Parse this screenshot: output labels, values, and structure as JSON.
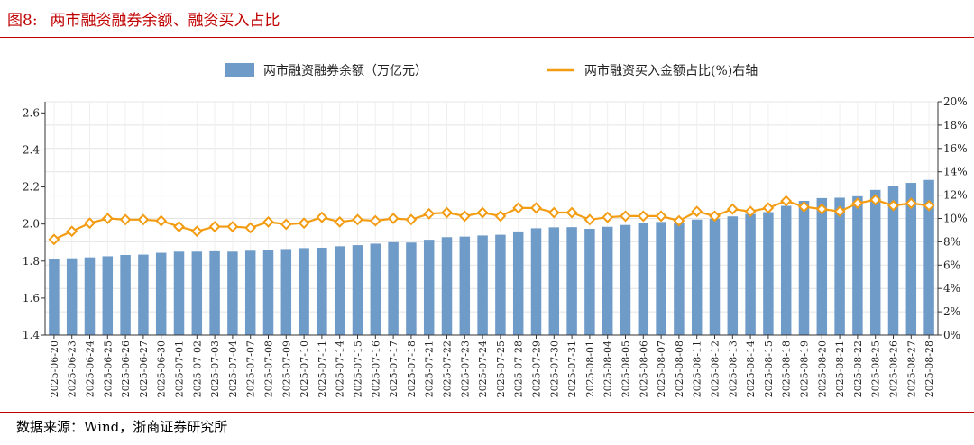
{
  "figure": {
    "number": "图8:",
    "title": "两市融资融券余额、融资买入占比",
    "source": "数据来源：Wind，浙商证券研究所"
  },
  "colors": {
    "bar": "#6f9bc8",
    "line": "#f39c12",
    "marker_fill": "#ffffff",
    "accent_red": "#c00000",
    "grid": "#e4e4e4"
  },
  "chart_data": {
    "type": "bar",
    "categories": [
      "2025-06-20",
      "2025-06-23",
      "2025-06-24",
      "2025-06-25",
      "2025-06-26",
      "2025-06-27",
      "2025-06-30",
      "2025-07-01",
      "2025-07-02",
      "2025-07-03",
      "2025-07-04",
      "2025-07-07",
      "2025-07-08",
      "2025-07-09",
      "2025-07-10",
      "2025-07-11",
      "2025-07-14",
      "2025-07-15",
      "2025-07-16",
      "2025-07-17",
      "2025-07-18",
      "2025-07-21",
      "2025-07-22",
      "2025-07-23",
      "2025-07-24",
      "2025-07-25",
      "2025-07-28",
      "2025-07-29",
      "2025-07-30",
      "2025-07-31",
      "2025-08-01",
      "2025-08-04",
      "2025-08-05",
      "2025-08-06",
      "2025-08-07",
      "2025-08-08",
      "2025-08-11",
      "2025-08-12",
      "2025-08-13",
      "2025-08-14",
      "2025-08-15",
      "2025-08-18",
      "2025-08-19",
      "2025-08-20",
      "2025-08-21",
      "2025-08-22",
      "2025-08-25",
      "2025-08-26",
      "2025-08-27",
      "2025-08-28"
    ],
    "series": [
      {
        "name": "两市融资融券余额（万亿元）",
        "type": "bar",
        "axis": "left",
        "values": [
          1.81,
          1.815,
          1.82,
          1.826,
          1.833,
          1.835,
          1.845,
          1.851,
          1.851,
          1.853,
          1.851,
          1.856,
          1.86,
          1.865,
          1.87,
          1.872,
          1.88,
          1.886,
          1.894,
          1.902,
          1.9,
          1.915,
          1.929,
          1.932,
          1.938,
          1.942,
          1.96,
          1.977,
          1.982,
          1.983,
          1.974,
          1.985,
          1.995,
          2.004,
          2.011,
          2.005,
          2.024,
          2.029,
          2.041,
          2.054,
          2.064,
          2.098,
          2.125,
          2.14,
          2.142,
          2.15,
          2.184,
          2.203,
          2.222,
          2.238
        ]
      },
      {
        "name": "两市融资买入金额占比(%)右轴",
        "type": "line",
        "axis": "right",
        "values": [
          8.2,
          8.9,
          9.6,
          10.0,
          9.9,
          9.9,
          9.8,
          9.3,
          8.9,
          9.3,
          9.3,
          9.2,
          9.7,
          9.5,
          9.6,
          10.1,
          9.7,
          9.9,
          9.8,
          10.0,
          9.9,
          10.4,
          10.5,
          10.2,
          10.5,
          10.2,
          10.9,
          10.9,
          10.5,
          10.5,
          9.9,
          10.1,
          10.2,
          10.2,
          10.2,
          9.8,
          10.6,
          10.2,
          10.8,
          10.6,
          10.9,
          11.5,
          11.0,
          10.8,
          10.6,
          11.3,
          11.6,
          11.1,
          11.3,
          11.1
        ]
      }
    ],
    "left_axis": {
      "ylim": [
        1.4,
        2.66
      ],
      "ticks": [
        "1.4",
        "1.6",
        "1.8",
        "2.0",
        "2.2",
        "2.4",
        "2.6"
      ]
    },
    "right_axis": {
      "ylim": [
        0,
        20
      ],
      "ticks": [
        "0%",
        "2%",
        "4%",
        "6%",
        "8%",
        "10%",
        "12%",
        "14%",
        "16%",
        "18%",
        "20%"
      ]
    },
    "legend_position": "top-center",
    "grid": true
  }
}
